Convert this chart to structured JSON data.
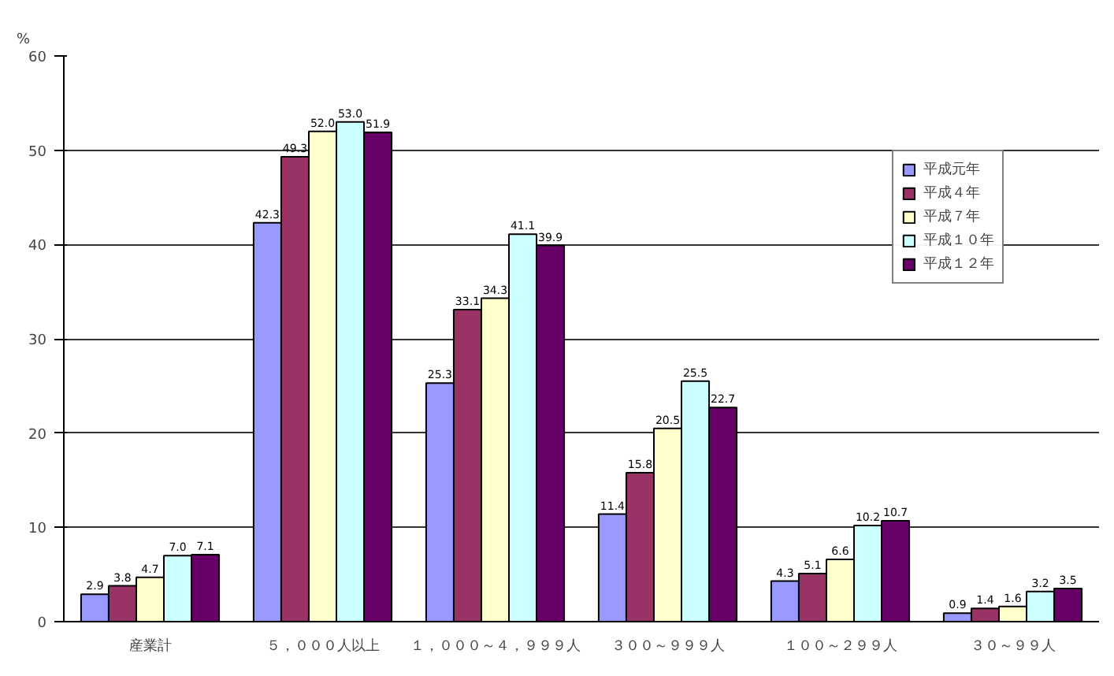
{
  "chart_data": {
    "type": "bar",
    "ylabel": "%",
    "categories": [
      "産業計",
      "５，０００人以上",
      "１，０００～４，９９９人",
      "３００～９９９人",
      "１００～２９９人",
      "３０～９９人"
    ],
    "series": [
      {
        "name": "平成元年",
        "color": "#9999ff",
        "values": [
          2.9,
          42.3,
          25.3,
          11.4,
          4.3,
          0.9
        ]
      },
      {
        "name": "平成４年",
        "color": "#993366",
        "values": [
          3.8,
          49.3,
          33.1,
          15.8,
          5.1,
          1.4
        ]
      },
      {
        "name": "平成７年",
        "color": "#ffffcc",
        "values": [
          4.7,
          52.0,
          34.3,
          20.5,
          6.6,
          1.6
        ],
        "value_labels": [
          "4.7",
          "52.0",
          "34.3",
          "20.5",
          "6.6",
          "1.6"
        ]
      },
      {
        "name": "平成１０年",
        "color": "#ccffff",
        "values": [
          7.0,
          53.0,
          41.1,
          25.5,
          10.2,
          3.2
        ],
        "value_labels": [
          "7.0",
          "53.0",
          "41.1",
          "25.5",
          "10.2",
          "3.2"
        ]
      },
      {
        "name": "平成１２年",
        "color": "#660066",
        "values": [
          7.1,
          51.9,
          39.9,
          22.7,
          10.7,
          3.5
        ]
      }
    ],
    "ylim": [
      0,
      60
    ],
    "yticks": [
      0,
      10,
      20,
      30,
      40,
      50,
      60
    ],
    "grid": "y",
    "legend": "top right",
    "data_labels": true
  }
}
